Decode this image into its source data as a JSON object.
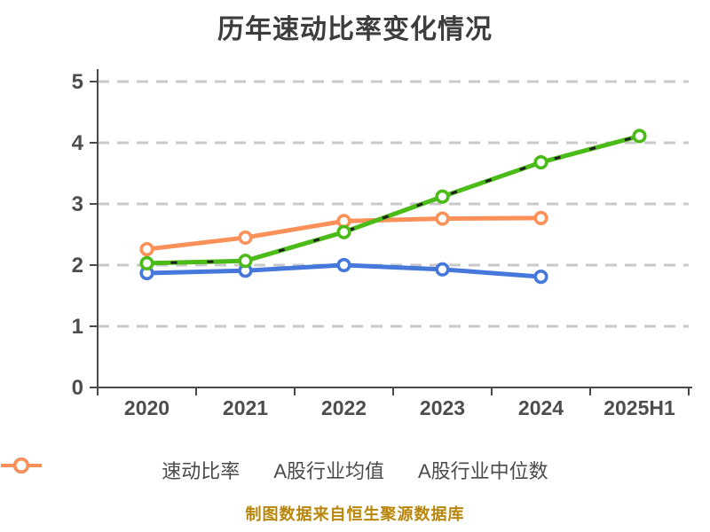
{
  "title": "历年速动比率变化情况",
  "footer": "制图数据来自恒生聚源数据库",
  "chart_data": {
    "type": "line",
    "title": "历年速动比率变化情况",
    "categories": [
      "2020",
      "2021",
      "2022",
      "2023",
      "2024",
      "2025H1"
    ],
    "series": [
      {
        "key": "quick-ratio",
        "name": "速动比率",
        "color": "#4bbb17",
        "overlay_dash": true,
        "overlay_color": "#1f1f1f",
        "values": [
          2.03,
          2.07,
          2.54,
          3.12,
          3.68,
          4.11
        ]
      },
      {
        "key": "industry-average",
        "name": "A股行业均值",
        "color": "#4678dc",
        "overlay_dash": false,
        "overlay_color": "",
        "values": [
          1.87,
          1.91,
          2.0,
          1.93,
          1.81,
          null
        ]
      },
      {
        "key": "industry-median",
        "name": "A股行业中位数",
        "color": "#fb9058",
        "overlay_dash": false,
        "overlay_color": "",
        "values": [
          2.26,
          2.45,
          2.72,
          2.76,
          2.77,
          null
        ]
      }
    ],
    "xlabel": "",
    "ylabel": "",
    "ylim": [
      0,
      5
    ],
    "yticks": [
      0,
      1,
      2,
      3,
      4,
      5
    ],
    "grid": "horizontal-dashed",
    "grid_color": "#c9c9c9",
    "axis_color": "#4a4a4a",
    "marker_fill": "#ffffff",
    "legend_position": "bottom"
  }
}
